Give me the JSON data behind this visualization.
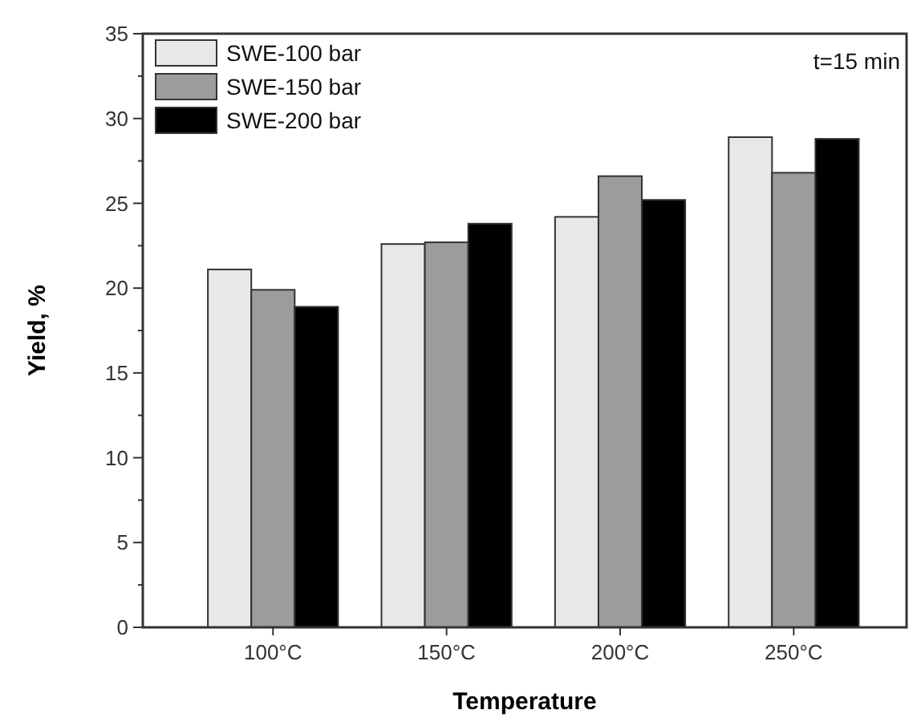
{
  "chart_data": {
    "type": "bar",
    "xlabel": "Temperature",
    "ylabel": "Yield, %",
    "categories": [
      "100°C",
      "150°C",
      "200°C",
      "250°C"
    ],
    "series": [
      {
        "name": "SWE-100 bar",
        "color": "#e8e8e8",
        "values": [
          21.1,
          22.6,
          24.2,
          28.9
        ]
      },
      {
        "name": "SWE-150 bar",
        "color": "#9c9c9c",
        "values": [
          19.9,
          22.7,
          26.6,
          26.8
        ]
      },
      {
        "name": "SWE-200 bar",
        "color": "#000000",
        "values": [
          18.9,
          23.8,
          25.2,
          28.8
        ]
      }
    ],
    "ylim": [
      0,
      35
    ],
    "yticks": [
      0,
      {
        "value": 2.5,
        "label": null
      },
      5,
      {
        "value": 7.5,
        "label": null
      },
      10,
      {
        "value": 12.5,
        "label": null
      },
      15,
      {
        "value": 17.5,
        "label": null
      },
      20,
      {
        "value": 22.5,
        "label": null
      },
      25,
      {
        "value": 27.5,
        "label": null
      },
      30,
      {
        "value": 32.5,
        "label": null
      },
      35
    ],
    "legend": "top left",
    "grid": false,
    "annotations": [
      "t=15 min"
    ]
  }
}
